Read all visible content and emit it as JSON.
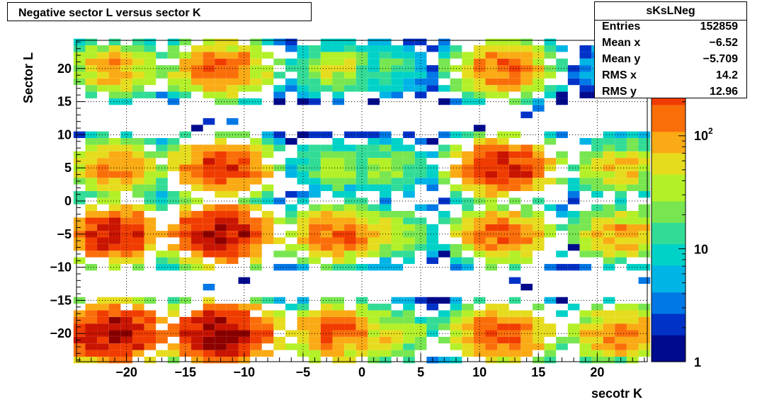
{
  "chart_data": {
    "type": "heatmap",
    "title": "Negative sector L versus sector K",
    "xlabel": "secotr K",
    "ylabel": "Sector L",
    "xlim": [
      -24.25,
      24.25
    ],
    "ylim": [
      -24.25,
      24.25
    ],
    "bin_width": 1,
    "x_ticks": [
      -20,
      -15,
      -10,
      -5,
      0,
      5,
      10,
      15,
      20
    ],
    "y_ticks": [
      20,
      15,
      10,
      5,
      0,
      -5,
      -10,
      -15,
      -20
    ],
    "x_tick_labels": [
      "−20",
      "−15",
      "−10",
      "−5",
      "0",
      "5",
      "10",
      "15",
      "20"
    ],
    "y_tick_labels": [
      "20",
      "15",
      "10",
      "5",
      "0",
      "−5",
      "−10",
      "−15",
      "−20"
    ],
    "z_scale": "log",
    "zlim": [
      1,
      700
    ],
    "z_tick_labels": [
      "1",
      "10",
      "10^2"
    ],
    "grid": true,
    "palette": [
      "#000a8c",
      "#0032c8",
      "#0078e6",
      "#00b4e6",
      "#00d2c8",
      "#32dc96",
      "#78e650",
      "#b4f028",
      "#e6dc1e",
      "#faaa14",
      "#fa6e0a",
      "#f03c00",
      "#c81400",
      "#8c0000"
    ],
    "clusters": [
      {
        "kx": -21,
        "ly": 20,
        "peak": 90
      },
      {
        "kx": -12,
        "ly": 20,
        "peak": 180
      },
      {
        "kx": -2,
        "ly": 20,
        "peak": 40
      },
      {
        "kx": 2,
        "ly": 20,
        "peak": 18
      },
      {
        "kx": 12,
        "ly": 20,
        "peak": 160
      },
      {
        "kx": 22,
        "ly": 20,
        "peak": 12
      },
      {
        "kx": -21,
        "ly": 5,
        "peak": 120
      },
      {
        "kx": -12,
        "ly": 5,
        "peak": 260
      },
      {
        "kx": -2,
        "ly": 5,
        "peak": 30
      },
      {
        "kx": 2,
        "ly": 5,
        "peak": 30
      },
      {
        "kx": 12,
        "ly": 5,
        "peak": 330
      },
      {
        "kx": 22,
        "ly": 5,
        "peak": 70
      },
      {
        "kx": -21,
        "ly": -5,
        "peak": 320
      },
      {
        "kx": -12,
        "ly": -5,
        "peak": 480
      },
      {
        "kx": -2,
        "ly": -5,
        "peak": 170
      },
      {
        "kx": 2,
        "ly": -5,
        "peak": 45
      },
      {
        "kx": 12,
        "ly": -5,
        "peak": 170
      },
      {
        "kx": 22,
        "ly": -5,
        "peak": 95
      },
      {
        "kx": -21,
        "ly": -20,
        "peak": 520
      },
      {
        "kx": -12,
        "ly": -20,
        "peak": 620
      },
      {
        "kx": -2,
        "ly": -20,
        "peak": 180
      },
      {
        "kx": 2,
        "ly": -20,
        "peak": 60
      },
      {
        "kx": 12,
        "ly": -20,
        "peak": 200
      },
      {
        "kx": 22,
        "ly": -20,
        "peak": 130
      }
    ],
    "extra_bins": [
      {
        "x": 15,
        "y": 14,
        "z": 3
      },
      {
        "x": 14,
        "y": 13,
        "z": 2
      },
      {
        "x": 17,
        "y": 16,
        "z": 1
      },
      {
        "x": -14,
        "y": 11,
        "z": 1
      },
      {
        "x": -13,
        "y": 12,
        "z": 2
      },
      {
        "x": -11,
        "y": 12,
        "z": 3
      },
      {
        "x": 10,
        "y": 11,
        "z": 1
      },
      {
        "x": -13,
        "y": -13,
        "z": 4
      },
      {
        "x": -10,
        "y": -12,
        "z": 1
      },
      {
        "x": 13,
        "y": -12,
        "z": 2
      },
      {
        "x": 14,
        "y": -13,
        "z": 1
      },
      {
        "x": 24,
        "y": -12,
        "z": 4
      },
      {
        "x": -24,
        "y": 10,
        "z": 2
      },
      {
        "x": 7,
        "y": -8,
        "z": 1
      },
      {
        "x": 18,
        "y": -7,
        "z": 1
      }
    ],
    "stats": {
      "name": "sKsLNeg",
      "entries": "152859",
      "mean_x": "−6.52",
      "mean_y": "−5.709",
      "rms_x": "14.2",
      "rms_y": "12.96"
    }
  },
  "labels": {
    "title": "Negative sector L versus sector K",
    "stats_name": "sKsLNeg",
    "entries_label": "Entries",
    "entries_value": "152859",
    "meanx_label": "Mean x",
    "meanx_value": "−6.52",
    "meany_label": "Mean y",
    "meany_value": "−5.709",
    "rmsx_label": "RMS x",
    "rmsx_value": "14.2",
    "rmsy_label": "RMS y",
    "rmsy_value": "12.96"
  }
}
